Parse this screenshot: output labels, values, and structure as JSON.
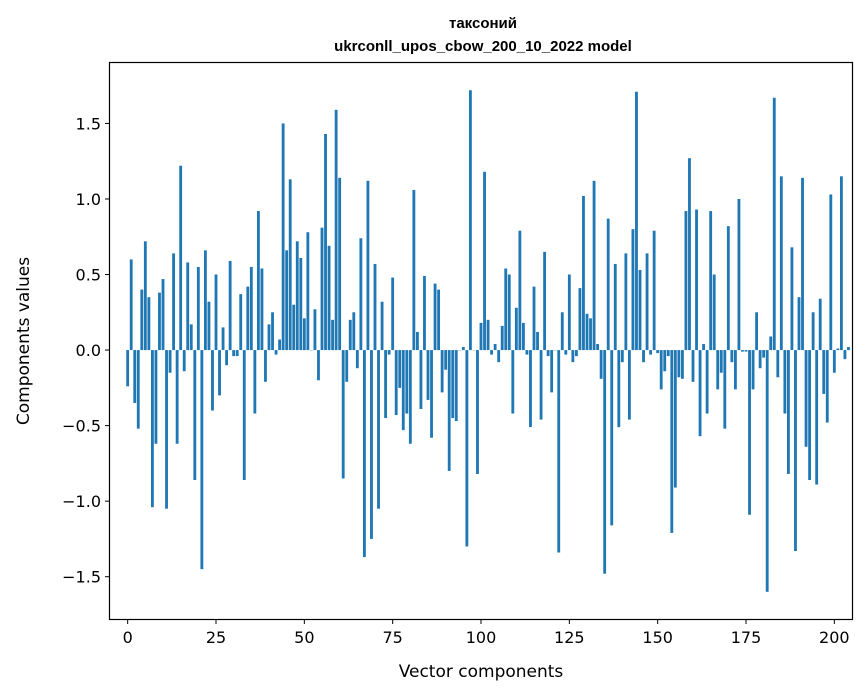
{
  "chart_data": {
    "type": "bar",
    "title": "таксоний",
    "subtitle": "ukrconll_upos_cbow_200_10_2022 model",
    "xlabel": "Vector components",
    "ylabel": "Components values",
    "xlim": [
      -5,
      205
    ],
    "ylim": [
      -1.78,
      1.9
    ],
    "xticks": [
      0,
      25,
      50,
      75,
      100,
      125,
      150,
      175,
      200
    ],
    "yticks": [
      -1.5,
      -1.0,
      -0.5,
      0.0,
      0.5,
      1.0,
      1.5
    ],
    "xtick_labels": [
      "0",
      "25",
      "50",
      "75",
      "100",
      "125",
      "150",
      "175",
      "200"
    ],
    "ytick_labels": [
      "−1.5",
      "−1.0",
      "−0.5",
      "0.0",
      "0.5",
      "1.0",
      "1.5"
    ],
    "bar_color": "#1f77b4",
    "grid": false,
    "values": [
      -0.24,
      0.6,
      -0.35,
      -0.52,
      0.4,
      0.72,
      0.35,
      -1.04,
      -0.62,
      0.38,
      0.47,
      -1.05,
      -0.15,
      0.64,
      -0.62,
      1.22,
      -0.14,
      0.58,
      0.17,
      -0.86,
      0.55,
      -1.45,
      0.66,
      0.32,
      -0.4,
      0.5,
      -0.3,
      0.15,
      -0.1,
      0.59,
      -0.04,
      -0.04,
      0.37,
      -0.86,
      0.42,
      0.55,
      -0.42,
      0.92,
      0.54,
      -0.21,
      0.17,
      0.25,
      -0.03,
      0.07,
      1.5,
      0.66,
      1.13,
      0.3,
      0.72,
      0.61,
      0.21,
      0.78,
      0.0,
      0.27,
      -0.2,
      0.81,
      1.43,
      0.69,
      0.2,
      1.59,
      1.14,
      -0.85,
      -0.21,
      0.2,
      0.25,
      -0.12,
      0.74,
      -1.37,
      1.12,
      -1.25,
      0.57,
      -1.05,
      0.32,
      -0.45,
      -0.03,
      0.48,
      -0.43,
      -0.25,
      -0.53,
      -0.42,
      -0.62,
      1.06,
      0.12,
      -0.39,
      0.49,
      -0.33,
      -0.58,
      0.44,
      0.4,
      -0.28,
      -0.13,
      -0.8,
      -0.45,
      -0.47,
      0.0,
      0.02,
      -1.3,
      1.72,
      0.0,
      -0.82,
      0.18,
      1.18,
      0.2,
      -0.03,
      0.04,
      -0.08,
      0.16,
      0.54,
      0.5,
      -0.42,
      0.28,
      0.79,
      0.18,
      -0.03,
      -0.51,
      0.42,
      0.12,
      -0.46,
      0.65,
      -0.04,
      -0.28,
      0.0,
      -1.34,
      0.25,
      -0.03,
      0.5,
      -0.08,
      -0.04,
      0.41,
      1.02,
      0.24,
      0.21,
      1.12,
      0.04,
      -0.19,
      -1.48,
      0.87,
      -1.16,
      0.57,
      -0.51,
      -0.08,
      0.64,
      -0.46,
      0.8,
      1.71,
      0.53,
      -0.08,
      0.64,
      -0.03,
      0.79,
      -0.02,
      -0.26,
      -0.14,
      -0.04,
      -1.21,
      -0.91,
      -0.18,
      -0.19,
      0.92,
      1.27,
      -0.21,
      0.93,
      -0.57,
      0.04,
      -0.42,
      0.92,
      0.5,
      -0.26,
      -0.15,
      -0.52,
      0.82,
      -0.08,
      -0.26,
      1.0,
      -0.01,
      -0.01,
      -1.09,
      -0.26,
      0.25,
      -0.12,
      -0.05,
      -1.6,
      0.09,
      1.67,
      -0.18,
      1.15,
      -0.42,
      -0.82,
      0.68,
      -1.33,
      0.35,
      1.14,
      -0.64,
      -0.86,
      0.25,
      -0.89,
      0.34,
      -0.29,
      -0.48,
      1.03,
      -0.15,
      0.01,
      1.15,
      -0.06,
      0.02
    ]
  }
}
